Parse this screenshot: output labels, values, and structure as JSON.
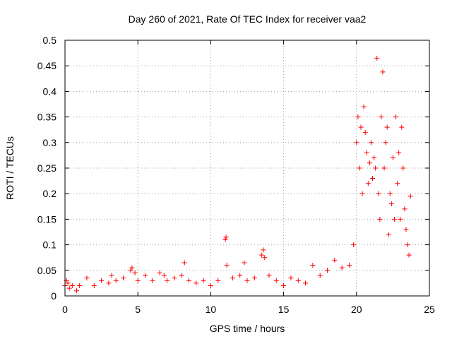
{
  "chart_data": {
    "type": "scatter",
    "title": "Day 260 of 2021, Rate Of TEC Index for receiver vaa2",
    "xlabel": "GPS time / hours",
    "ylabel": "ROTI / TECUs",
    "xlim": [
      0,
      25
    ],
    "ylim": [
      0,
      0.5
    ],
    "xticks": [
      "0",
      "5",
      "10",
      "15",
      "20",
      "25"
    ],
    "yticks": [
      "0",
      "0.05",
      "0.1",
      "0.15",
      "0.2",
      "0.25",
      "0.3",
      "0.35",
      "0.4",
      "0.45",
      "0.5"
    ],
    "grid": true,
    "marker": "+",
    "series_color": "#ff0000",
    "series": [
      {
        "x": [
          0.0,
          0.1,
          0.2,
          0.3,
          0.5,
          0.8,
          1.0,
          1.5,
          2.0,
          2.5,
          3.0,
          3.2,
          3.5,
          4.0,
          4.5,
          4.6,
          4.8,
          5.0,
          5.5,
          6.0,
          6.5,
          6.8,
          7.0,
          7.5,
          8.0,
          8.2,
          8.5,
          9.0,
          9.5,
          10.0,
          10.5,
          11.0,
          11.05,
          11.1,
          11.5,
          12.0,
          12.3,
          12.5,
          13.0,
          13.5,
          13.6,
          13.7,
          14.0,
          14.5,
          15.0,
          15.5,
          16.0,
          16.5,
          17.0,
          17.5,
          18.0,
          18.5,
          19.0,
          19.5,
          19.8,
          20.0,
          20.1,
          20.2,
          20.3,
          20.4,
          20.5,
          20.6,
          20.7,
          20.8,
          20.9,
          21.0,
          21.1,
          21.2,
          21.3,
          21.4,
          21.5,
          21.6,
          21.7,
          21.8,
          21.9,
          22.0,
          22.1,
          22.2,
          22.3,
          22.4,
          22.5,
          22.6,
          22.7,
          22.8,
          22.9,
          23.0,
          23.1,
          23.2,
          23.3,
          23.4,
          23.5,
          23.6,
          23.7
        ],
        "y": [
          0.02,
          0.03,
          0.025,
          0.015,
          0.02,
          0.01,
          0.02,
          0.035,
          0.02,
          0.03,
          0.025,
          0.04,
          0.03,
          0.035,
          0.05,
          0.055,
          0.045,
          0.03,
          0.04,
          0.03,
          0.045,
          0.04,
          0.03,
          0.035,
          0.04,
          0.065,
          0.03,
          0.025,
          0.03,
          0.02,
          0.03,
          0.11,
          0.115,
          0.06,
          0.035,
          0.04,
          0.065,
          0.03,
          0.035,
          0.08,
          0.09,
          0.075,
          0.04,
          0.03,
          0.02,
          0.035,
          0.03,
          0.025,
          0.06,
          0.04,
          0.05,
          0.07,
          0.055,
          0.06,
          0.1,
          0.3,
          0.35,
          0.25,
          0.33,
          0.2,
          0.37,
          0.32,
          0.28,
          0.22,
          0.26,
          0.3,
          0.23,
          0.27,
          0.25,
          0.465,
          0.2,
          0.15,
          0.35,
          0.438,
          0.25,
          0.3,
          0.33,
          0.12,
          0.2,
          0.18,
          0.27,
          0.15,
          0.35,
          0.22,
          0.28,
          0.15,
          0.33,
          0.25,
          0.17,
          0.13,
          0.1,
          0.08,
          0.195
        ]
      }
    ]
  }
}
